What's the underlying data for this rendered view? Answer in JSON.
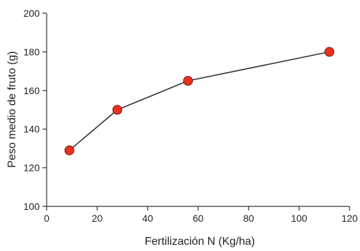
{
  "chart_data": {
    "type": "line",
    "title": "",
    "xlabel": "Fertilización N (Kg/ha)",
    "ylabel": "Peso medio de fruto (g)",
    "xlim": [
      0,
      120
    ],
    "ylim": [
      100,
      200
    ],
    "x_ticks": [
      0,
      20,
      40,
      60,
      80,
      100,
      120
    ],
    "y_ticks": [
      100,
      120,
      140,
      160,
      180,
      200
    ],
    "grid": false,
    "legend": "none",
    "series": [
      {
        "x": [
          9,
          28,
          56,
          112
        ],
        "values": [
          129,
          150,
          165,
          180
        ],
        "line_color": "#333333",
        "marker_color": "#e8321e",
        "marker_edge_color": "#7a1a10"
      }
    ]
  }
}
